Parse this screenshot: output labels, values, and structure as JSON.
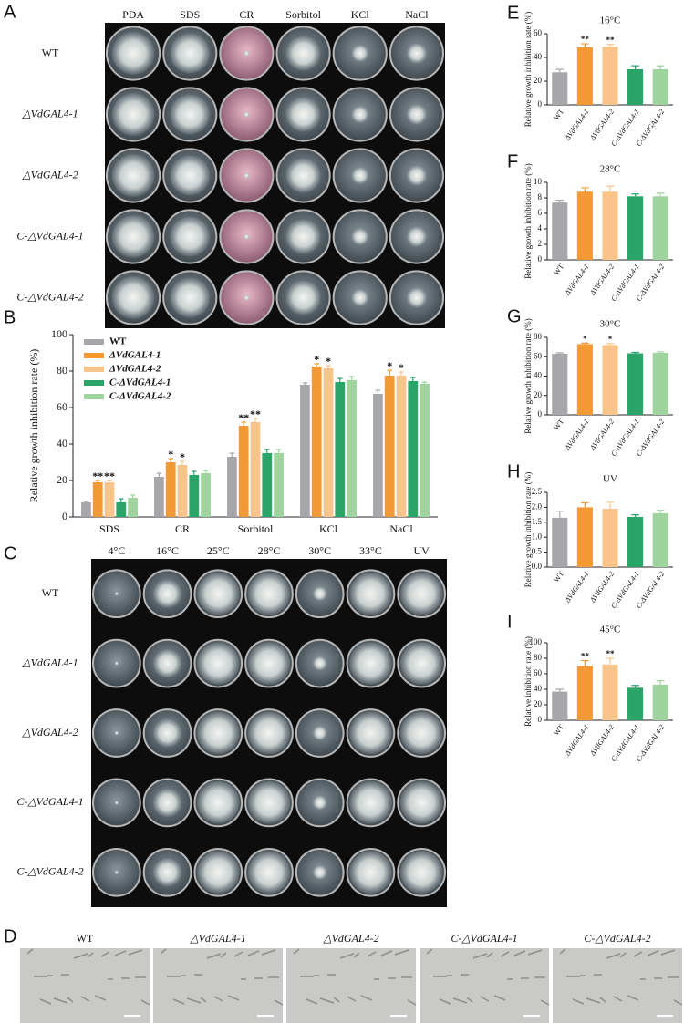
{
  "panels": {
    "A": {
      "label": "A",
      "columns": [
        "PDA",
        "SDS",
        "CR",
        "Sorbitol",
        "KCl",
        "NaCl"
      ],
      "rows": [
        "WT",
        "△VdGAL4-1",
        "△VdGAL4-2",
        "C-△VdGAL4-1",
        "C-△VdGAL4-2"
      ]
    },
    "C": {
      "label": "C",
      "columns": [
        "4°C",
        "16°C",
        "25°C",
        "28°C",
        "30°C",
        "33°C",
        "UV"
      ],
      "rows": [
        "WT",
        "△VdGAL4-1",
        "△VdGAL4-2",
        "C-△VdGAL4-1",
        "C-△VdGAL4-2"
      ]
    },
    "D": {
      "label": "D",
      "columns": [
        "WT",
        "△VdGAL4-1",
        "△VdGAL4-2",
        "C-△VdGAL4-1",
        "C-△VdGAL4-2"
      ]
    }
  },
  "chart_data": [
    {
      "type": "bar",
      "panel": "B",
      "ylabel": "Relative growth inhibition rate (%)",
      "categories": [
        "SDS",
        "CR",
        "Sorbitol",
        "KCl",
        "NaCl"
      ],
      "ylim": [
        0,
        100
      ],
      "yticks": [
        0,
        20,
        40,
        60,
        80,
        100
      ],
      "legend": "upper left",
      "series": [
        {
          "name": "WT",
          "color": "#a7a7ab",
          "values": [
            8,
            22,
            33,
            72.5,
            67.5
          ],
          "errors": [
            0.5,
            2,
            2,
            1,
            2
          ],
          "stars": [
            null,
            null,
            null,
            null,
            null
          ]
        },
        {
          "name": "ΔVdGAL4-1",
          "color": "#f39a36",
          "values": [
            19,
            30,
            50,
            82.5,
            77.5
          ],
          "errors": [
            1,
            2,
            2,
            1.5,
            3
          ],
          "stars": [
            "**",
            "*",
            "**",
            "*",
            "*"
          ]
        },
        {
          "name": "ΔVdGAL4-2",
          "color": "#f8c48a",
          "values": [
            19,
            28.5,
            52,
            81.5,
            77.5
          ],
          "errors": [
            1,
            2,
            2,
            1.5,
            2
          ],
          "stars": [
            "**",
            "*",
            "**",
            "*",
            "*"
          ]
        },
        {
          "name": "C-ΔVdGAL4-1",
          "color": "#2aa468",
          "values": [
            8,
            23,
            35,
            74,
            74.5
          ],
          "errors": [
            2,
            2,
            2,
            2,
            2
          ],
          "stars": [
            null,
            null,
            null,
            null,
            null
          ]
        },
        {
          "name": "C-ΔVdGAL4-2",
          "color": "#9fd49f",
          "values": [
            10.5,
            24,
            35,
            75,
            73
          ],
          "errors": [
            1.5,
            1.5,
            2,
            2,
            1
          ],
          "stars": [
            null,
            null,
            null,
            null,
            null
          ]
        }
      ]
    },
    {
      "type": "bar",
      "panel": "E",
      "title": "16°C",
      "ylabel": "Relative growth inhibition rate (%)",
      "categories": [
        "WT",
        "ΔVdGAL4-1",
        "ΔVdGAL4-2",
        "C-ΔVdGAL4-1",
        "C-ΔVdGAL4-2"
      ],
      "colors": [
        "#a7a7ab",
        "#f39a36",
        "#f8c48a",
        "#2aa468",
        "#9fd49f"
      ],
      "values": [
        27.5,
        48.5,
        49,
        30,
        30
      ],
      "errors": [
        2.5,
        3,
        2,
        3,
        3
      ],
      "stars": [
        null,
        "**",
        "**",
        null,
        null
      ],
      "ylim": [
        0,
        60
      ],
      "yticks": [
        0,
        20,
        40,
        60
      ]
    },
    {
      "type": "bar",
      "panel": "F",
      "title": "28°C",
      "ylabel": "Relative growth inhibition rate (%)",
      "categories": [
        "WT",
        "ΔVdGAL4-1",
        "ΔVdGAL4-2",
        "C-ΔVdGAL4-1",
        "C-ΔVdGAL4-2"
      ],
      "colors": [
        "#a7a7ab",
        "#f39a36",
        "#f8c48a",
        "#2aa468",
        "#9fd49f"
      ],
      "values": [
        7.4,
        8.8,
        8.8,
        8.2,
        8.2
      ],
      "errors": [
        0.3,
        0.5,
        0.7,
        0.3,
        0.4
      ],
      "stars": [
        null,
        null,
        null,
        null,
        null
      ],
      "ylim": [
        0,
        10
      ],
      "yticks": [
        0,
        2,
        4,
        6,
        8,
        10
      ]
    },
    {
      "type": "bar",
      "panel": "G",
      "title": "30°C",
      "ylabel": "Relative growth inhibition rate (%)",
      "categories": [
        "WT",
        "ΔVdGAL4-1",
        "ΔVdGAL4-2",
        "C-ΔVdGAL4-1",
        "C-ΔVdGAL4-2"
      ],
      "colors": [
        "#a7a7ab",
        "#f39a36",
        "#f8c48a",
        "#2aa468",
        "#9fd49f"
      ],
      "values": [
        63,
        73,
        72,
        63.5,
        64
      ],
      "errors": [
        1,
        1,
        1.5,
        1,
        1
      ],
      "stars": [
        null,
        "*",
        "*",
        null,
        null
      ],
      "ylim": [
        0,
        80
      ],
      "yticks": [
        0,
        20,
        40,
        60,
        80
      ]
    },
    {
      "type": "bar",
      "panel": "H",
      "title": "UV",
      "ylabel": "Relative growth inhibition rate (%)",
      "categories": [
        "WT",
        "ΔVdGAL4-1",
        "ΔVdGAL4-2",
        "C-ΔVdGAL4-1",
        "C-ΔVdGAL4-2"
      ],
      "colors": [
        "#a7a7ab",
        "#f39a36",
        "#f8c48a",
        "#2aa468",
        "#9fd49f"
      ],
      "values": [
        1.65,
        2.0,
        1.95,
        1.68,
        1.8
      ],
      "errors": [
        0.22,
        0.15,
        0.22,
        0.07,
        0.1
      ],
      "stars": [
        null,
        null,
        null,
        null,
        null
      ],
      "ylim": [
        0,
        2.5
      ],
      "yticks": [
        {
          "value": 0,
          "label": "0.0"
        },
        0.5,
        {
          "value": 1,
          "label": "1.0"
        },
        1.5,
        {
          "value": 2,
          "label": "2.0"
        },
        2.5
      ]
    },
    {
      "type": "bar",
      "panel": "I",
      "title": "45°C",
      "ylabel": "Relative inhibition rate (%)",
      "categories": [
        "WT",
        "ΔVdGAL4-1",
        "ΔVdGAL4-2",
        "C-ΔVdGAL4-1",
        "C-ΔVdGAL4-2"
      ],
      "colors": [
        "#a7a7ab",
        "#f39a36",
        "#f8c48a",
        "#2aa468",
        "#9fd49f"
      ],
      "values": [
        37,
        70,
        72,
        42,
        46
      ],
      "errors": [
        3,
        7,
        8,
        3,
        5
      ],
      "stars": [
        null,
        "**",
        "**",
        null,
        null
      ],
      "ylim": [
        0,
        100
      ],
      "yticks": [
        0,
        20,
        40,
        60,
        80,
        100
      ]
    }
  ]
}
